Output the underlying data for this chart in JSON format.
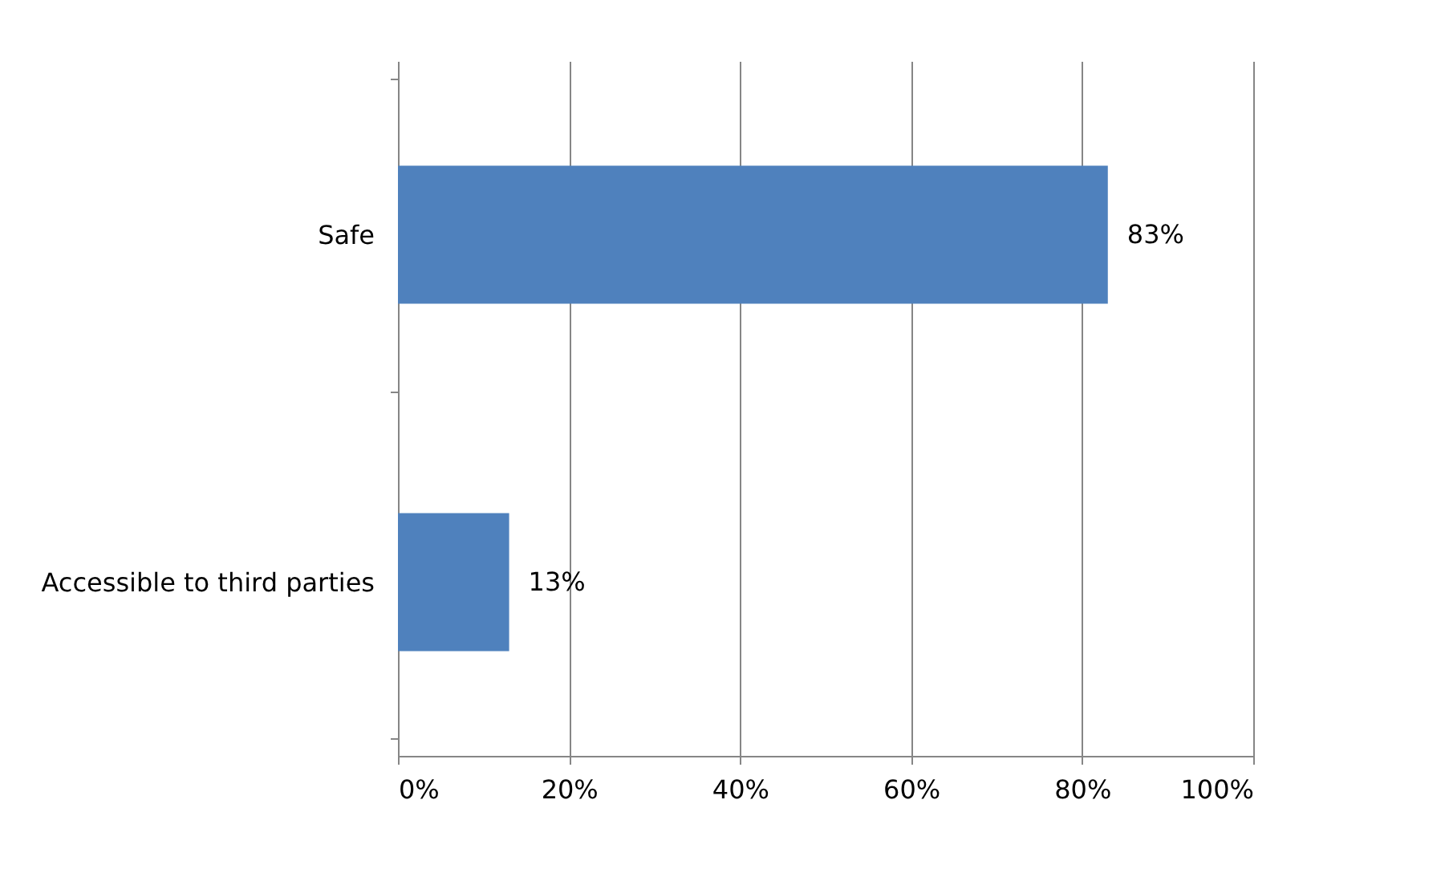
{
  "chart_data": {
    "type": "bar",
    "orientation": "horizontal",
    "categories": [
      "Safe",
      "Accessible to third parties"
    ],
    "values": [
      83,
      13
    ],
    "color": "#4f81bd",
    "value_labels": [
      "83%",
      "13%"
    ],
    "xlim": [
      0,
      100
    ],
    "xticks": [
      {
        "value": 0,
        "label": "0%"
      },
      {
        "value": 20,
        "label": "20%"
      },
      {
        "value": 40,
        "label": "40%"
      },
      {
        "value": 60,
        "label": "60%"
      },
      {
        "value": 80,
        "label": "80%"
      },
      {
        "value": 100,
        "label": "100%"
      }
    ],
    "grid": "x"
  }
}
